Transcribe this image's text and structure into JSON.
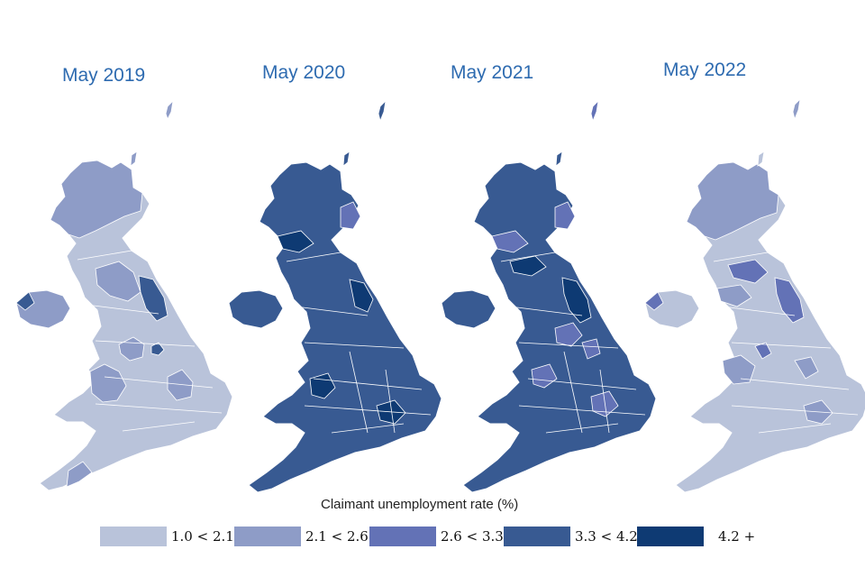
{
  "panels": [
    {
      "title": "May 2019",
      "base_class": "1.0 < 2.1",
      "secondary_class": "2.1 < 2.6",
      "accent_class": "3.3 < 4.2"
    },
    {
      "title": "May 2020",
      "base_class": "3.3 < 4.2",
      "secondary_class": "4.2 +",
      "accent_class": "2.6 < 3.3"
    },
    {
      "title": "May 2021",
      "base_class": "3.3 < 4.2",
      "secondary_class": "2.6 < 3.3",
      "accent_class": "4.2 +"
    },
    {
      "title": "May 2022",
      "base_class": "1.0 < 2.1",
      "secondary_class": "2.1 < 2.6",
      "accent_class": "2.6 < 3.3"
    }
  ],
  "legend": {
    "title": "Claimant unemployment rate (%)",
    "classes": [
      {
        "label": "1.0 < 2.1",
        "color": "#b9c3da"
      },
      {
        "label": "2.1 < 2.6",
        "color": "#8e9cc7"
      },
      {
        "label": "2.6 < 3.3",
        "color": "#6372b6"
      },
      {
        "label": "3.3 < 4.2",
        "color": "#385a92"
      },
      {
        "label": "4.2 +",
        "color": "#0e3a73"
      }
    ]
  }
}
